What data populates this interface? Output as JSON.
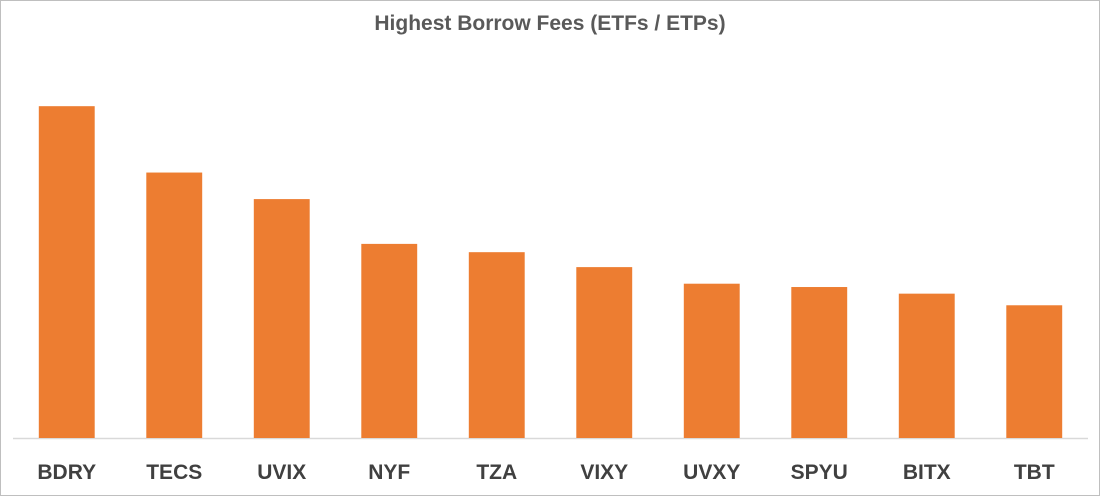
{
  "chart_data": {
    "type": "bar",
    "title": "Highest Borrow Fees (ETFs / ETPs)",
    "categories": [
      "BDRY",
      "TECS",
      "UVIX",
      "NYF",
      "TZA",
      "VIXY",
      "UVXY",
      "SPYU",
      "BITX",
      "TBT"
    ],
    "values": [
      100,
      80,
      72,
      58.5,
      56,
      51.5,
      46.5,
      45.5,
      43.5,
      40
    ],
    "bar_color": "#ED7D31",
    "axis_color": "#D9D9D9",
    "ylim": [
      0,
      110
    ],
    "grid": false,
    "legend": "none"
  }
}
